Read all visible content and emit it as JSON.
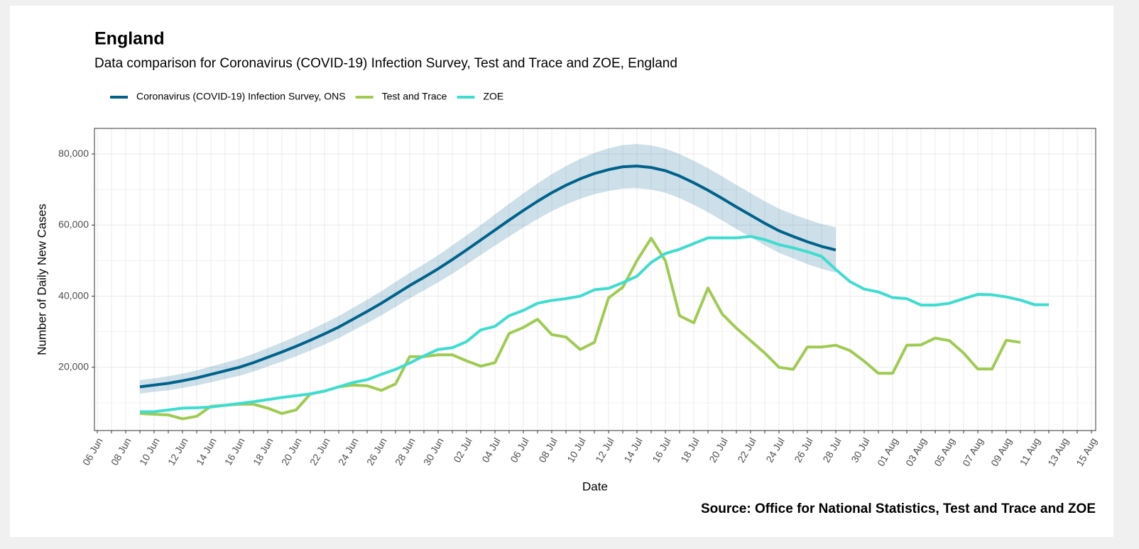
{
  "chart_data": {
    "type": "line",
    "title": "England",
    "subtitle": "Data comparison for Coronavirus (COVID-19) Infection Survey, Test and Trace and ZOE, England",
    "caption": "Source: Office for National Statistics, Test and Trace and ZOE",
    "xlabel": "Date",
    "ylabel": "Number of Daily New Cases",
    "legend": "top",
    "grid": true,
    "categories": [
      "06 Jun",
      null,
      "08 Jun",
      null,
      "10 Jun",
      null,
      "12 Jun",
      null,
      "14 Jun",
      null,
      "16 Jun",
      null,
      "18 Jun",
      null,
      "20 Jun",
      null,
      "22 Jun",
      null,
      "24 Jun",
      null,
      "26 Jun",
      null,
      "28 Jun",
      null,
      "30 Jun",
      null,
      "02 Jul",
      null,
      "04 Jul",
      null,
      "06 Jul",
      null,
      "08 Jul",
      null,
      "10 Jul",
      null,
      "12 Jul",
      null,
      "14 Jul",
      null,
      "16 Jul",
      null,
      "18 Jul",
      null,
      "20 Jul",
      null,
      "22 Jul",
      null,
      "24 Jul",
      null,
      "26 Jul",
      null,
      "28 Jul",
      null,
      "30 Jul",
      null,
      "01 Aug",
      null,
      "03 Aug",
      null,
      "05 Aug",
      null,
      "07 Aug",
      null,
      "09 Aug",
      null,
      "11 Aug",
      null,
      "13 Aug",
      null,
      "15 Aug"
    ],
    "series": [
      {
        "name": "Coronavirus (COVID-19) Infection Survey, ONS",
        "color": "#00628b",
        "band_color": "#1b6d96",
        "values": [
          null,
          null,
          null,
          14500,
          15000,
          15500,
          16200,
          17000,
          18000,
          19000,
          20000,
          21300,
          22800,
          24300,
          25900,
          27600,
          29400,
          31300,
          33500,
          35700,
          38000,
          40500,
          43000,
          45300,
          47700,
          50300,
          53000,
          55800,
          58600,
          61400,
          64100,
          66700,
          69100,
          71200,
          73000,
          74500,
          75600,
          76400,
          76600,
          76200,
          75300,
          73800,
          71900,
          69800,
          67500,
          65100,
          62800,
          60500,
          58400,
          56800,
          55300,
          54000,
          53000,
          null,
          null,
          null,
          null,
          null,
          null,
          null,
          null,
          null,
          null,
          null,
          null,
          null,
          null,
          null,
          null,
          null,
          null
        ],
        "upper": [
          null,
          null,
          null,
          16400,
          16900,
          17500,
          18200,
          19100,
          20200,
          21300,
          22400,
          23800,
          25400,
          27000,
          28700,
          30500,
          32400,
          34400,
          36700,
          39000,
          41400,
          44000,
          46600,
          49000,
          51500,
          54300,
          57100,
          60000,
          63000,
          66000,
          68900,
          71700,
          74300,
          76600,
          78600,
          80300,
          81600,
          82500,
          82800,
          82400,
          81500,
          80000,
          78100,
          76000,
          73700,
          71300,
          69000,
          66700,
          64600,
          63000,
          61600,
          60300,
          59400,
          null,
          null,
          null,
          null,
          null,
          null,
          null,
          null,
          null,
          null,
          null,
          null,
          null,
          null,
          null,
          null,
          null,
          null
        ],
        "lower": [
          null,
          null,
          null,
          12600,
          13100,
          13500,
          14200,
          14900,
          15800,
          16700,
          17600,
          18800,
          20200,
          21600,
          23100,
          24700,
          26400,
          28200,
          30300,
          32400,
          34600,
          37000,
          39400,
          41600,
          43900,
          46300,
          48900,
          51600,
          54200,
          56800,
          59300,
          61700,
          63900,
          65800,
          67400,
          68700,
          69600,
          70300,
          70400,
          70000,
          69100,
          67600,
          65700,
          63600,
          61300,
          58900,
          56600,
          54300,
          52200,
          50600,
          49000,
          47700,
          46600,
          null,
          null,
          null,
          null,
          null,
          null,
          null,
          null,
          null,
          null,
          null,
          null,
          null,
          null,
          null,
          null,
          null,
          null
        ]
      },
      {
        "name": "Test and Trace",
        "color": "#9fcb52",
        "values": [
          null,
          null,
          null,
          7000,
          6800,
          6600,
          5500,
          6200,
          9000,
          9300,
          9600,
          9600,
          8500,
          7000,
          8000,
          12500,
          13300,
          14500,
          15000,
          14800,
          13500,
          15300,
          23000,
          23000,
          23500,
          23500,
          21800,
          20300,
          21300,
          29500,
          31200,
          33500,
          29200,
          28500,
          25000,
          27000,
          39500,
          42500,
          50000,
          56300,
          50000,
          34500,
          32500,
          42300,
          35000,
          31000,
          27500,
          24000,
          20000,
          19400,
          25700,
          25700,
          26200,
          24700,
          21700,
          18300,
          18300,
          26200,
          26300,
          28200,
          27500,
          24000,
          19500,
          19500,
          27600,
          27000,
          null,
          null,
          null,
          null,
          null
        ]
      },
      {
        "name": "ZOE",
        "color": "#3fdcd0",
        "values": [
          null,
          null,
          null,
          7500,
          7500,
          8000,
          8500,
          8600,
          8800,
          9300,
          9800,
          10300,
          10900,
          11500,
          12000,
          12500,
          13300,
          14500,
          15700,
          16500,
          18000,
          19400,
          21200,
          23200,
          25000,
          25500,
          27200,
          30500,
          31500,
          34500,
          36000,
          38000,
          38800,
          39300,
          40000,
          41800,
          42200,
          43800,
          45600,
          49500,
          52000,
          53200,
          54800,
          56400,
          56400,
          56400,
          56800,
          55900,
          54500,
          53600,
          52500,
          51200,
          47500,
          44100,
          42000,
          41200,
          39600,
          39300,
          37500,
          37500,
          38000,
          39300,
          40500,
          40400,
          39800,
          38900,
          37600,
          37600,
          null,
          null,
          null
        ]
      }
    ],
    "ylim": [
      2200,
      87200
    ],
    "yticks": [
      {
        "value": 20000,
        "label": "20,000"
      },
      {
        "value": 40000,
        "label": "40,000"
      },
      {
        "value": 60000,
        "label": "60,000"
      },
      {
        "value": 80000,
        "label": "80,000"
      }
    ],
    "yminorticks": [
      10000,
      30000,
      50000,
      70000
    ]
  }
}
